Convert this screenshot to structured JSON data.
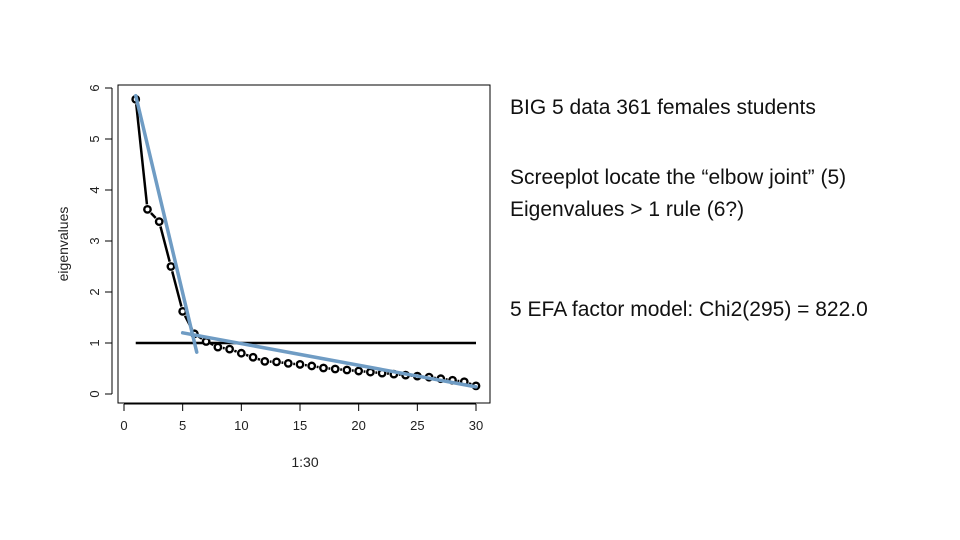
{
  "chart_data": {
    "type": "scatter",
    "title": "",
    "xlabel": "1:30",
    "ylabel": "eigenvalues",
    "xlim": [
      0,
      30
    ],
    "ylim": [
      0,
      6
    ],
    "x_ticks": [
      "0",
      "5",
      "10",
      "15",
      "20",
      "25",
      "30"
    ],
    "y_ticks": [
      "0",
      "1",
      "2",
      "3",
      "4",
      "5",
      "6"
    ],
    "grid": false,
    "series": [
      {
        "name": "eigenvalues",
        "x": [
          1,
          2,
          3,
          4,
          5,
          6,
          7,
          8,
          9,
          10,
          11,
          12,
          13,
          14,
          15,
          16,
          17,
          18,
          19,
          20,
          21,
          22,
          23,
          24,
          25,
          26,
          27,
          28,
          29,
          30
        ],
        "values": [
          5.78,
          3.62,
          3.38,
          2.5,
          1.62,
          1.18,
          1.03,
          0.92,
          0.88,
          0.8,
          0.72,
          0.64,
          0.63,
          0.6,
          0.58,
          0.55,
          0.51,
          0.49,
          0.47,
          0.45,
          0.43,
          0.41,
          0.39,
          0.37,
          0.35,
          0.33,
          0.3,
          0.27,
          0.24,
          0.16
        ]
      }
    ],
    "reference_line": {
      "y": 1,
      "x_from": 1,
      "x_to": 30,
      "color": "#000000"
    },
    "elbow_lines": [
      {
        "from": [
          1,
          5.85
        ],
        "to": [
          6.2,
          0.82
        ],
        "color": "#6f9cc4"
      },
      {
        "from": [
          5,
          1.2
        ],
        "to": [
          30,
          0.14
        ],
        "color": "#6f9cc4"
      }
    ],
    "point_color": "#000000",
    "connector_color": "#000000"
  },
  "notes": {
    "line1": "BIG 5 data 361 females students",
    "line2": "Screeplot locate the “elbow joint” (5)",
    "line3": "Eigenvalues > 1 rule (6?)",
    "line4": "5 EFA factor model: Chi2(295) = 822.0"
  }
}
